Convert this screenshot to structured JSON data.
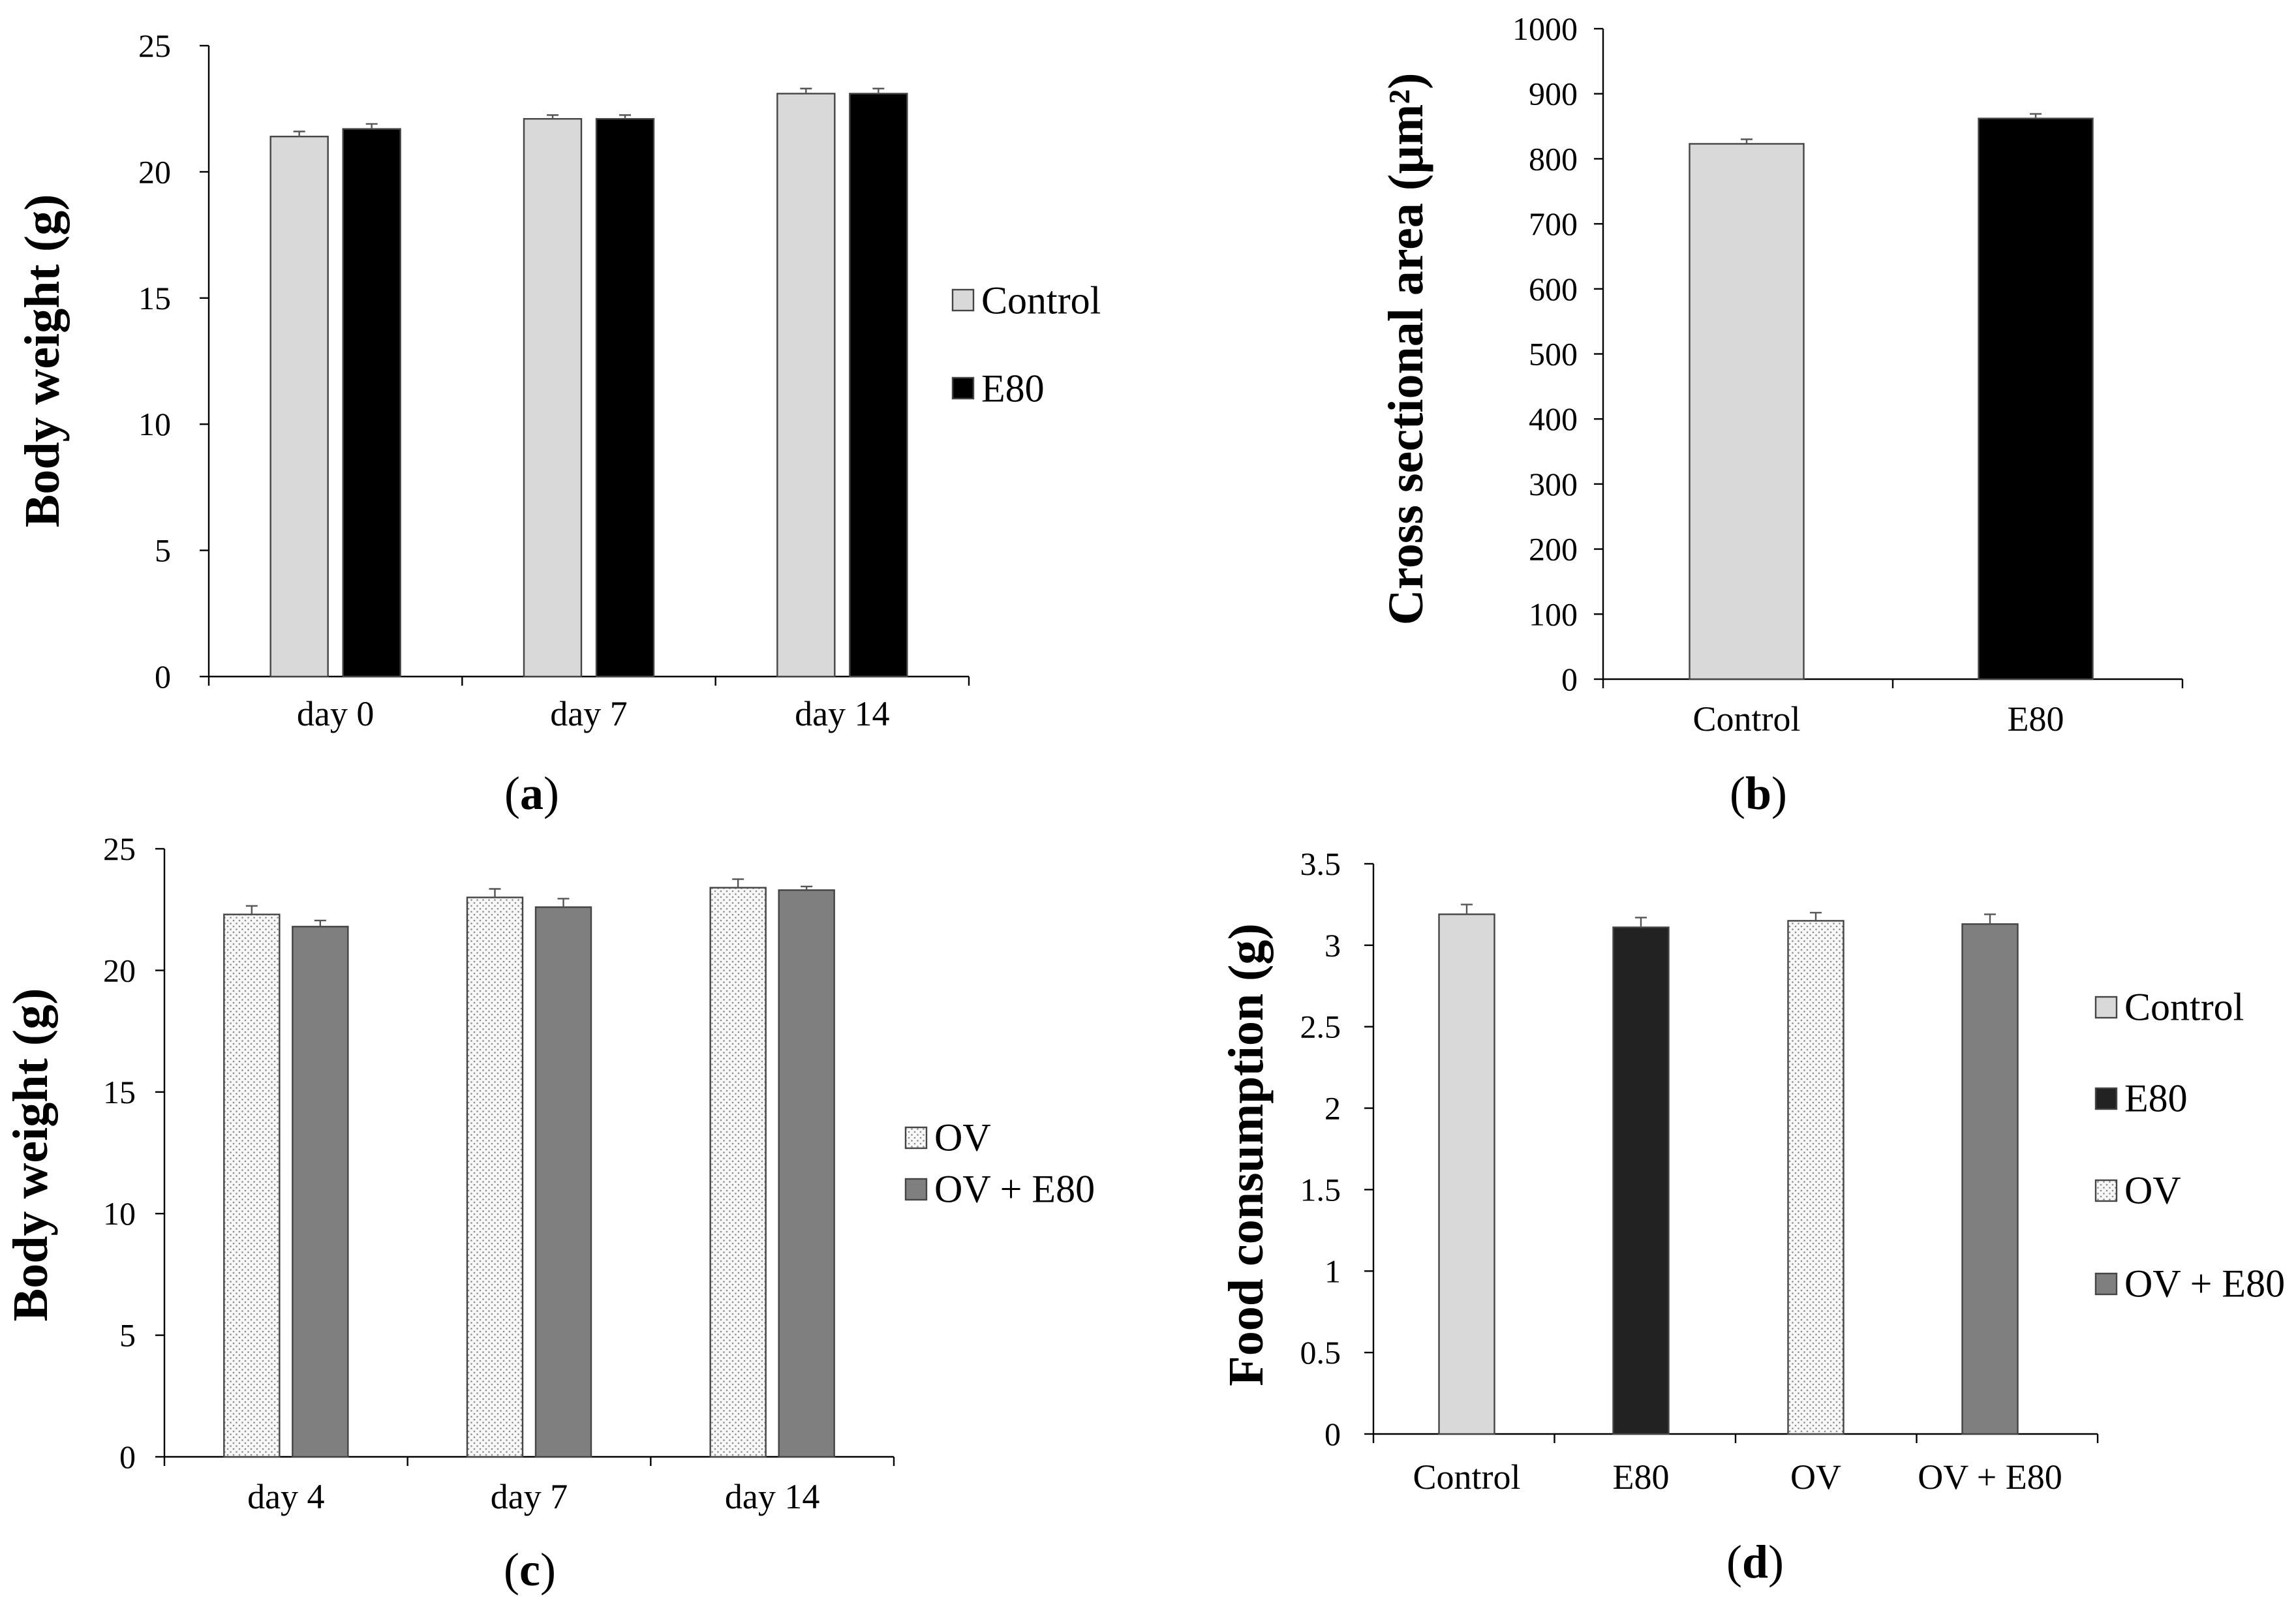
{
  "chart_data": [
    {
      "panel": "a",
      "panel_label_left": "(",
      "panel_label_letter": "a",
      "panel_label_right": ")",
      "type": "bar",
      "ylabel": "Body weight (g)",
      "xlabel": "",
      "ylim": [
        0,
        25
      ],
      "yticks": [
        0,
        5,
        10,
        15,
        20,
        25
      ],
      "ytick_labels": [
        "0",
        "5",
        "10",
        "15",
        "20",
        "25"
      ],
      "categories": [
        "day 0",
        "day 7",
        "day 14"
      ],
      "legend_position": "right",
      "series": [
        {
          "name": "Control",
          "values": [
            21.4,
            22.1,
            23.1
          ],
          "errors": [
            0.2,
            0.15,
            0.2
          ],
          "color": "#d9d9d9",
          "pattern": "solid"
        },
        {
          "name": "E80",
          "values": [
            21.7,
            22.1,
            23.1
          ],
          "errors": [
            0.2,
            0.15,
            0.2
          ],
          "color": "#000000",
          "pattern": "solid"
        }
      ]
    },
    {
      "panel": "b",
      "panel_label_left": "(",
      "panel_label_letter": "b",
      "panel_label_right": ")",
      "type": "bar",
      "ylabel": "Cross sectional area (µm²)",
      "xlabel": "",
      "ylim": [
        0,
        1000
      ],
      "yticks": [
        0,
        100,
        200,
        300,
        400,
        500,
        600,
        700,
        800,
        900,
        1000
      ],
      "ytick_labels": [
        "0",
        "100",
        "200",
        "300",
        "400",
        "500",
        "600",
        "700",
        "800",
        "900",
        "1000"
      ],
      "categories": [
        "Control",
        "E80"
      ],
      "legend_position": "none",
      "series": [
        {
          "name": "Cross sectional area",
          "values": [
            823,
            862
          ],
          "errors": [
            7,
            7
          ],
          "colors": [
            "#d9d9d9",
            "#000000"
          ],
          "pattern": "solid"
        }
      ]
    },
    {
      "panel": "c",
      "panel_label_left": "(",
      "panel_label_letter": "c",
      "panel_label_right": ")",
      "type": "bar",
      "ylabel": "Body weight (g)",
      "xlabel": "",
      "ylim": [
        0,
        25
      ],
      "yticks": [
        0,
        5,
        10,
        15,
        20,
        25
      ],
      "ytick_labels": [
        "0",
        "5",
        "10",
        "15",
        "20",
        "25"
      ],
      "categories": [
        "day 4",
        "day 7",
        "day 14"
      ],
      "legend_position": "right",
      "series": [
        {
          "name": "OV",
          "values": [
            22.3,
            23.0,
            23.4
          ],
          "errors": [
            0.35,
            0.35,
            0.35
          ],
          "color": "#f4f4f4",
          "pattern": "dotted"
        },
        {
          "name": "OV + E80",
          "values": [
            21.8,
            22.6,
            23.3
          ],
          "errors": [
            0.25,
            0.35,
            0.15
          ],
          "color": "#7f7f7f",
          "pattern": "solid"
        }
      ]
    },
    {
      "panel": "d",
      "panel_label_left": "(",
      "panel_label_letter": "d",
      "panel_label_right": ")",
      "type": "bar",
      "ylabel": "Food consumption  (g)",
      "xlabel": "",
      "ylim": [
        0,
        3.5
      ],
      "yticks": [
        0,
        0.5,
        1,
        1.5,
        2,
        2.5,
        3,
        3.5
      ],
      "ytick_labels": [
        "0",
        "0.5",
        "1",
        "1.5",
        "2",
        "2.5",
        "3",
        "3.5"
      ],
      "categories": [
        "Control",
        "E80",
        "OV",
        "OV + E80"
      ],
      "legend_position": "right",
      "series": [
        {
          "name": "Food consumption",
          "values": [
            3.19,
            3.11,
            3.15,
            3.13
          ],
          "errors": [
            0.06,
            0.06,
            0.05,
            0.06
          ],
          "colors": [
            "#d9d9d9",
            "#222222",
            "#f4f4f4",
            "#7f7f7f"
          ],
          "patterns": [
            "solid",
            "solid",
            "dotted",
            "solid"
          ]
        }
      ],
      "legend_entries": [
        {
          "name": "Control",
          "color": "#d9d9d9",
          "pattern": "solid"
        },
        {
          "name": "E80",
          "color": "#222222",
          "pattern": "solid"
        },
        {
          "name": "OV",
          "color": "#f4f4f4",
          "pattern": "dotted"
        },
        {
          "name": "OV + E80",
          "color": "#7f7f7f",
          "pattern": "solid"
        }
      ]
    }
  ]
}
